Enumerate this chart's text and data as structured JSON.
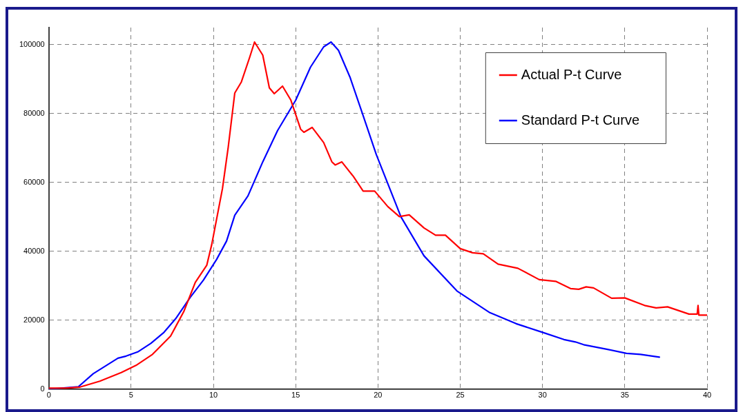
{
  "chart_data": {
    "type": "line",
    "series": [
      {
        "name": "Actual P-t Curve",
        "color": "#ff0000",
        "x": [
          0,
          1,
          1.9,
          3.1,
          4.4,
          5.3,
          6.3,
          7.4,
          8.2,
          8.9,
          9.6,
          9.9,
          10.55,
          10.9,
          11.3,
          11.7,
          12.2,
          12.5,
          13.0,
          13.4,
          13.7,
          14.2,
          14.7,
          15.3,
          15.5,
          16.0,
          16.7,
          17.2,
          17.4,
          17.8,
          18.5,
          19.1,
          19.8,
          20.6,
          21.3,
          21.9,
          22.8,
          23.5,
          24.1,
          25.0,
          25.75,
          26.4,
          27.3,
          28.5,
          29.8,
          30.8,
          31.7,
          32.2,
          32.65,
          33.1,
          34.2,
          35.0,
          36.2,
          36.9,
          37.6,
          38.9,
          39.4,
          39.45,
          39.5,
          40
        ],
        "values": [
          300,
          300,
          600,
          2300,
          4800,
          6900,
          10100,
          15400,
          22500,
          31000,
          36000,
          42000,
          58200,
          70200,
          86000,
          89200,
          96300,
          100800,
          97000,
          87500,
          85800,
          88000,
          84000,
          75500,
          74600,
          76000,
          71600,
          66000,
          65100,
          66000,
          61800,
          57500,
          57500,
          53000,
          50100,
          50600,
          46800,
          44700,
          44700,
          40800,
          39600,
          39300,
          36300,
          35100,
          31800,
          31300,
          29200,
          29000,
          29700,
          29400,
          26400,
          26500,
          24300,
          23600,
          23900,
          21800,
          21800,
          24300,
          21500,
          21500
        ]
      },
      {
        "name": "Standard P-t Curve",
        "color": "#0000ff",
        "x": [
          0,
          1.8,
          2.7,
          4.2,
          4.7,
          5.4,
          6.2,
          7.0,
          7.7,
          8.6,
          9.4,
          10.2,
          10.8,
          11.3,
          12.1,
          13.0,
          13.9,
          15.0,
          15.9,
          16.7,
          17.15,
          17.6,
          18.3,
          19.1,
          19.9,
          21.4,
          22.8,
          24.8,
          26.8,
          28.4,
          30.0,
          31.3,
          32.0,
          32.5,
          33.9,
          35.1,
          35.95,
          37.1
        ],
        "values": [
          0,
          700,
          4500,
          9000,
          9600,
          10800,
          13300,
          16500,
          20400,
          26700,
          31700,
          37700,
          43000,
          50500,
          56100,
          66000,
          75100,
          83900,
          93500,
          99400,
          100800,
          98400,
          90600,
          79400,
          68100,
          50000,
          38700,
          28500,
          22200,
          19000,
          16500,
          14400,
          13700,
          12900,
          11600,
          10400,
          10100,
          9300
        ]
      }
    ],
    "xlim": [
      0,
      40
    ],
    "xticks": [
      0,
      5,
      10,
      15,
      20,
      25,
      30,
      35,
      40
    ],
    "ylim": [
      0,
      105000
    ],
    "yticks": [
      0,
      20000,
      40000,
      60000,
      80000,
      100000
    ],
    "grid": true,
    "legend": "top right",
    "marker": "none",
    "line_style": "solid"
  }
}
